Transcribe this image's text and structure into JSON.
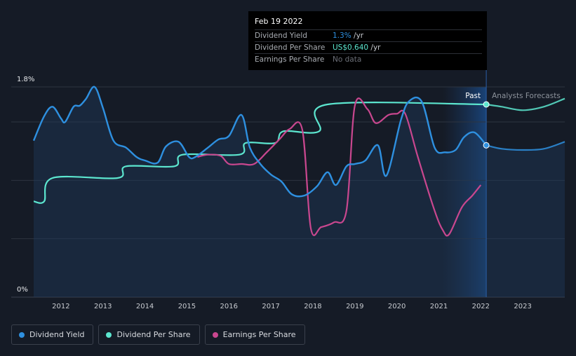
{
  "chart_data": {
    "type": "line",
    "y_axis": {
      "top_label": "1.8%",
      "bottom_label": "0%",
      "ylim": [
        0,
        1.8
      ]
    },
    "x_ticks": [
      "2012",
      "2013",
      "2014",
      "2015",
      "2016",
      "2017",
      "2018",
      "2019",
      "2020",
      "2021",
      "2022",
      "2023"
    ],
    "xlim": [
      2011.35,
      2024.0
    ],
    "grid": true,
    "past_label": "Past",
    "forecast_label": "Analysts Forecasts",
    "past_forecast_boundary": 2022.13,
    "series": [
      {
        "name": "Dividend Yield",
        "color": "#2e90e0",
        "y_unit": "%",
        "points": [
          [
            2011.35,
            1.34
          ],
          [
            2011.6,
            1.55
          ],
          [
            2011.8,
            1.63
          ],
          [
            2012.0,
            1.53
          ],
          [
            2012.1,
            1.5
          ],
          [
            2012.3,
            1.63
          ],
          [
            2012.45,
            1.64
          ],
          [
            2012.6,
            1.7
          ],
          [
            2012.8,
            1.8
          ],
          [
            2013.0,
            1.62
          ],
          [
            2013.25,
            1.34
          ],
          [
            2013.55,
            1.28
          ],
          [
            2013.8,
            1.2
          ],
          [
            2014.0,
            1.17
          ],
          [
            2014.3,
            1.15
          ],
          [
            2014.5,
            1.29
          ],
          [
            2014.8,
            1.33
          ],
          [
            2015.05,
            1.2
          ],
          [
            2015.2,
            1.2
          ],
          [
            2015.5,
            1.28
          ],
          [
            2015.75,
            1.35
          ],
          [
            2016.0,
            1.38
          ],
          [
            2016.3,
            1.56
          ],
          [
            2016.5,
            1.28
          ],
          [
            2016.75,
            1.14
          ],
          [
            2017.0,
            1.05
          ],
          [
            2017.25,
            0.99
          ],
          [
            2017.5,
            0.88
          ],
          [
            2017.8,
            0.87
          ],
          [
            2018.1,
            0.95
          ],
          [
            2018.35,
            1.07
          ],
          [
            2018.55,
            0.96
          ],
          [
            2018.8,
            1.12
          ],
          [
            2019.0,
            1.14
          ],
          [
            2019.25,
            1.17
          ],
          [
            2019.55,
            1.3
          ],
          [
            2019.75,
            1.04
          ],
          [
            2020.1,
            1.52
          ],
          [
            2020.3,
            1.68
          ],
          [
            2020.6,
            1.67
          ],
          [
            2020.9,
            1.28
          ],
          [
            2021.15,
            1.24
          ],
          [
            2021.4,
            1.26
          ],
          [
            2021.6,
            1.37
          ],
          [
            2021.85,
            1.41
          ],
          [
            2022.13,
            1.3
          ]
        ],
        "forecast": [
          [
            2022.13,
            1.3
          ],
          [
            2022.5,
            1.27
          ],
          [
            2023.0,
            1.26
          ],
          [
            2023.5,
            1.27
          ],
          [
            2024.0,
            1.33
          ]
        ]
      },
      {
        "name": "Dividend Per Share",
        "color": "#5ce6cf",
        "y_unit": "%-scaled",
        "points": [
          [
            2011.35,
            0.82
          ],
          [
            2011.6,
            0.82
          ],
          [
            2011.8,
            1.02
          ],
          [
            2013.35,
            1.02
          ],
          [
            2013.55,
            1.12
          ],
          [
            2014.7,
            1.12
          ],
          [
            2014.9,
            1.22
          ],
          [
            2016.25,
            1.22
          ],
          [
            2016.4,
            1.32
          ],
          [
            2017.1,
            1.32
          ],
          [
            2017.3,
            1.42
          ],
          [
            2018.15,
            1.42
          ],
          [
            2018.35,
            1.65
          ],
          [
            2022.13,
            1.65
          ]
        ],
        "forecast": [
          [
            2022.13,
            1.65
          ],
          [
            2022.5,
            1.63
          ],
          [
            2023.0,
            1.6
          ],
          [
            2023.5,
            1.63
          ],
          [
            2024.0,
            1.7
          ]
        ]
      },
      {
        "name": "Earnings Per Share",
        "color": "#c9478f",
        "y_unit": "%-scaled",
        "points": [
          [
            2015.25,
            1.2
          ],
          [
            2015.5,
            1.22
          ],
          [
            2015.8,
            1.21
          ],
          [
            2016.0,
            1.14
          ],
          [
            2016.3,
            1.14
          ],
          [
            2016.6,
            1.14
          ],
          [
            2016.9,
            1.24
          ],
          [
            2017.2,
            1.35
          ],
          [
            2017.45,
            1.44
          ],
          [
            2017.75,
            1.43
          ],
          [
            2017.95,
            0.59
          ],
          [
            2018.2,
            0.6
          ],
          [
            2018.5,
            0.64
          ],
          [
            2018.8,
            0.74
          ],
          [
            2019.0,
            1.64
          ],
          [
            2019.3,
            1.61
          ],
          [
            2019.5,
            1.49
          ],
          [
            2019.8,
            1.56
          ],
          [
            2020.0,
            1.57
          ],
          [
            2020.2,
            1.57
          ],
          [
            2020.5,
            1.2
          ],
          [
            2020.9,
            0.74
          ],
          [
            2021.1,
            0.57
          ],
          [
            2021.25,
            0.54
          ],
          [
            2021.55,
            0.77
          ],
          [
            2021.8,
            0.87
          ],
          [
            2022.0,
            0.96
          ]
        ]
      }
    ]
  },
  "tooltip": {
    "date": "Feb 19 2022",
    "rows": [
      {
        "label": "Dividend Yield",
        "value": "1.3%",
        "unit": " /yr",
        "color": "#2e90e0"
      },
      {
        "label": "Dividend Per Share",
        "value": "US$0.640",
        "unit": " /yr",
        "color": "#5ce6cf"
      },
      {
        "label": "Earnings Per Share",
        "value": "No data",
        "unit": "",
        "color": "#6c7078"
      }
    ]
  },
  "legend": [
    {
      "label": "Dividend Yield",
      "color": "#2e90e0"
    },
    {
      "label": "Dividend Per Share",
      "color": "#5ce6cf"
    },
    {
      "label": "Earnings Per Share",
      "color": "#c9478f"
    }
  ]
}
